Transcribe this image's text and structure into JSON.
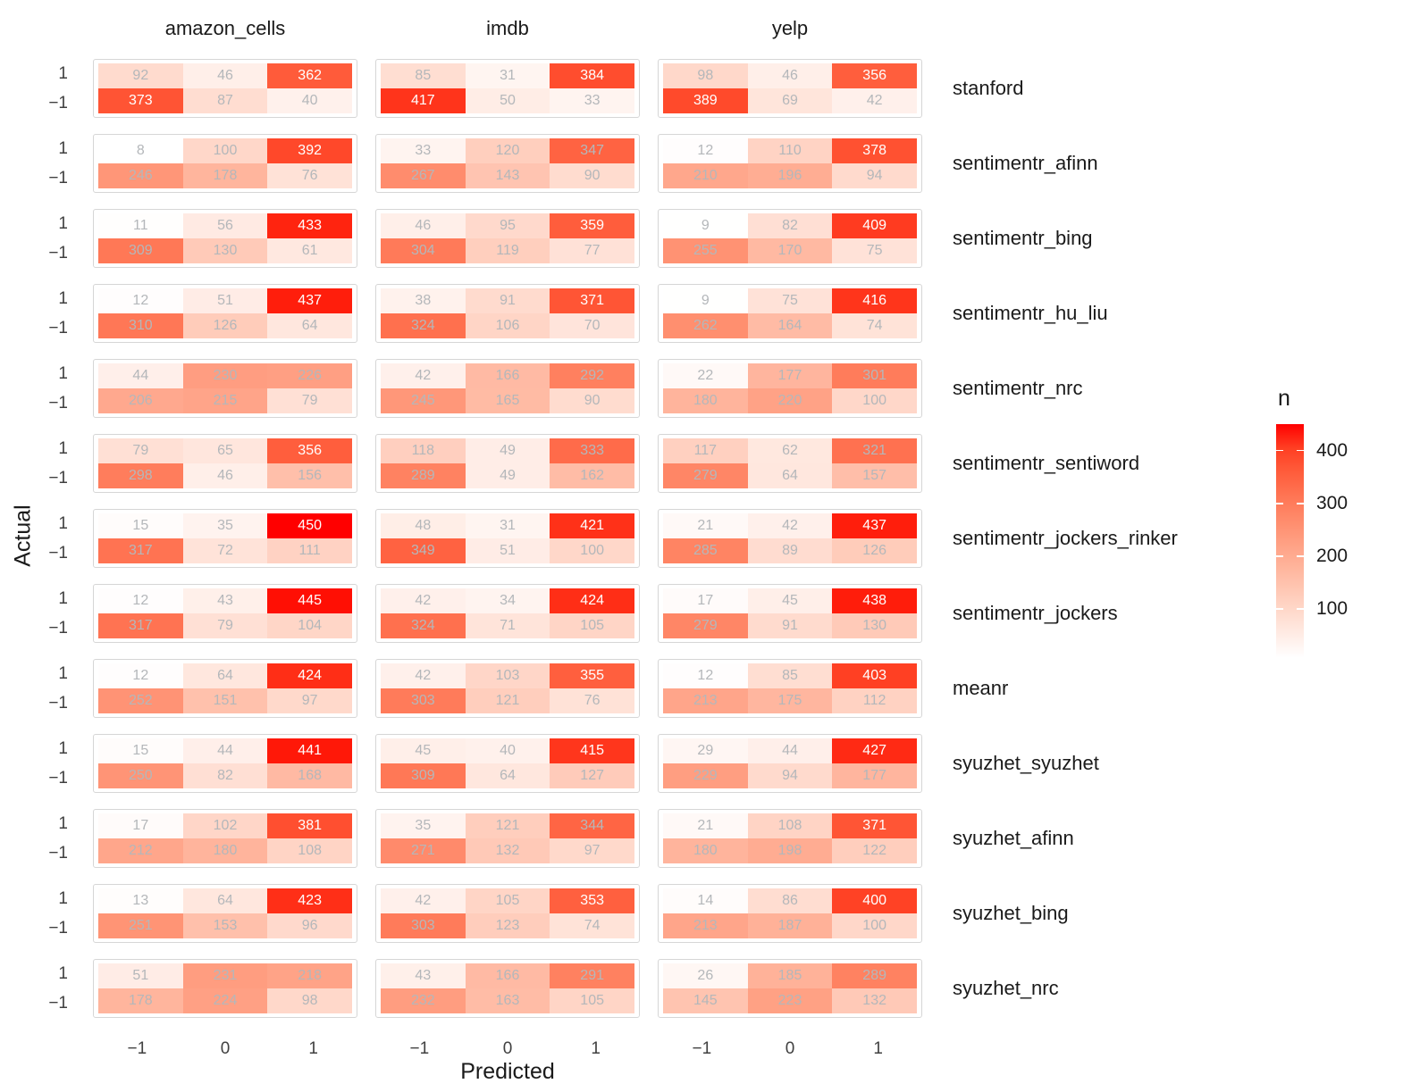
{
  "chart_data": {
    "type": "heatmap",
    "title": "",
    "xlabel": "Predicted",
    "ylabel": "Actual",
    "x_tick_labels": [
      "−1",
      "0",
      "1"
    ],
    "y_tick_labels": [
      "1",
      "−1"
    ],
    "facet_columns": [
      "amazon_cells",
      "imdb",
      "yelp"
    ],
    "grid": "off",
    "legend_position": "right",
    "legend": {
      "title": "n",
      "ticks": [
        400,
        300,
        200,
        100
      ],
      "domain": [
        8,
        450
      ],
      "low_color": "#ffffff",
      "high_color": "#ff0000",
      "label_white_threshold": 350,
      "label_gray_color": "#b4b7ba",
      "label_white_color": "#ffffff"
    },
    "methods": [
      {
        "name": "stanford",
        "panels": [
          [
            [
              92,
              46,
              362
            ],
            [
              373,
              87,
              40
            ]
          ],
          [
            [
              85,
              31,
              384
            ],
            [
              417,
              50,
              33
            ]
          ],
          [
            [
              98,
              46,
              356
            ],
            [
              389,
              69,
              42
            ]
          ]
        ]
      },
      {
        "name": "sentimentr_afinn",
        "panels": [
          [
            [
              8,
              100,
              392
            ],
            [
              246,
              178,
              76
            ]
          ],
          [
            [
              33,
              120,
              347
            ],
            [
              267,
              143,
              90
            ]
          ],
          [
            [
              12,
              110,
              378
            ],
            [
              210,
              196,
              94
            ]
          ]
        ]
      },
      {
        "name": "sentimentr_bing",
        "panels": [
          [
            [
              11,
              56,
              433
            ],
            [
              309,
              130,
              61
            ]
          ],
          [
            [
              46,
              95,
              359
            ],
            [
              304,
              119,
              77
            ]
          ],
          [
            [
              9,
              82,
              409
            ],
            [
              255,
              170,
              75
            ]
          ]
        ]
      },
      {
        "name": "sentimentr_hu_liu",
        "panels": [
          [
            [
              12,
              51,
              437
            ],
            [
              310,
              126,
              64
            ]
          ],
          [
            [
              38,
              91,
              371
            ],
            [
              324,
              106,
              70
            ]
          ],
          [
            [
              9,
              75,
              416
            ],
            [
              262,
              164,
              74
            ]
          ]
        ]
      },
      {
        "name": "sentimentr_nrc",
        "panels": [
          [
            [
              44,
              230,
              226
            ],
            [
              206,
              215,
              79
            ]
          ],
          [
            [
              42,
              166,
              292
            ],
            [
              245,
              165,
              90
            ]
          ],
          [
            [
              22,
              177,
              301
            ],
            [
              180,
              220,
              100
            ]
          ]
        ]
      },
      {
        "name": "sentimentr_sentiword",
        "panels": [
          [
            [
              79,
              65,
              356
            ],
            [
              298,
              46,
              156
            ]
          ],
          [
            [
              118,
              49,
              333
            ],
            [
              289,
              49,
              162
            ]
          ],
          [
            [
              117,
              62,
              321
            ],
            [
              279,
              64,
              157
            ]
          ]
        ]
      },
      {
        "name": "sentimentr_jockers_rinker",
        "panels": [
          [
            [
              15,
              35,
              450
            ],
            [
              317,
              72,
              111
            ]
          ],
          [
            [
              48,
              31,
              421
            ],
            [
              349,
              51,
              100
            ]
          ],
          [
            [
              21,
              42,
              437
            ],
            [
              285,
              89,
              126
            ]
          ]
        ]
      },
      {
        "name": "sentimentr_jockers",
        "panels": [
          [
            [
              12,
              43,
              445
            ],
            [
              317,
              79,
              104
            ]
          ],
          [
            [
              42,
              34,
              424
            ],
            [
              324,
              71,
              105
            ]
          ],
          [
            [
              17,
              45,
              438
            ],
            [
              279,
              91,
              130
            ]
          ]
        ]
      },
      {
        "name": "meanr",
        "panels": [
          [
            [
              12,
              64,
              424
            ],
            [
              252,
              151,
              97
            ]
          ],
          [
            [
              42,
              103,
              355
            ],
            [
              303,
              121,
              76
            ]
          ],
          [
            [
              12,
              85,
              403
            ],
            [
              213,
              175,
              112
            ]
          ]
        ]
      },
      {
        "name": "syuzhet_syuzhet",
        "panels": [
          [
            [
              15,
              44,
              441
            ],
            [
              250,
              82,
              168
            ]
          ],
          [
            [
              45,
              40,
              415
            ],
            [
              309,
              64,
              127
            ]
          ],
          [
            [
              29,
              44,
              427
            ],
            [
              229,
              94,
              177
            ]
          ]
        ]
      },
      {
        "name": "syuzhet_afinn",
        "panels": [
          [
            [
              17,
              102,
              381
            ],
            [
              212,
              180,
              108
            ]
          ],
          [
            [
              35,
              121,
              344
            ],
            [
              271,
              132,
              97
            ]
          ],
          [
            [
              21,
              108,
              371
            ],
            [
              180,
              198,
              122
            ]
          ]
        ]
      },
      {
        "name": "syuzhet_bing",
        "panels": [
          [
            [
              13,
              64,
              423
            ],
            [
              251,
              153,
              96
            ]
          ],
          [
            [
              42,
              105,
              353
            ],
            [
              303,
              123,
              74
            ]
          ],
          [
            [
              14,
              86,
              400
            ],
            [
              213,
              187,
              100
            ]
          ]
        ]
      },
      {
        "name": "syuzhet_nrc",
        "panels": [
          [
            [
              51,
              231,
              218
            ],
            [
              178,
              224,
              98
            ]
          ],
          [
            [
              43,
              166,
              291
            ],
            [
              232,
              163,
              105
            ]
          ],
          [
            [
              26,
              185,
              289
            ],
            [
              145,
              223,
              132
            ]
          ]
        ]
      }
    ]
  }
}
